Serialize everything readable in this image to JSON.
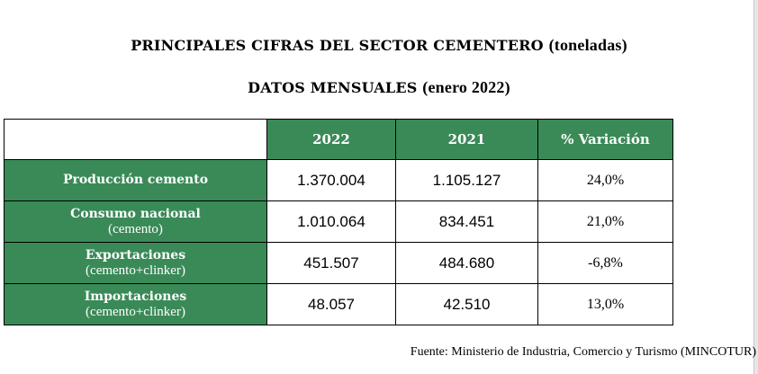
{
  "title": {
    "main": "PRINCIPALES CIFRAS DEL SECTOR CEMENTERO",
    "unit": "(toneladas)",
    "sub": "DATOS MENSUALES",
    "period": "(enero 2022)"
  },
  "table": {
    "headers": [
      "",
      "2022",
      "2021",
      "% Variación"
    ],
    "rows": [
      {
        "label": "Producción cemento",
        "sublabel": "",
        "y2022": "1.370.004",
        "y2021": "1.105.127",
        "variation": "24,0%"
      },
      {
        "label": "Consumo nacional",
        "sublabel": "(cemento)",
        "y2022": "1.010.064",
        "y2021": "834.451",
        "variation": "21,0%"
      },
      {
        "label": "Exportaciones",
        "sublabel": "(cemento+clinker)",
        "y2022": "451.507",
        "y2021": "484.680",
        "variation": "-6,8%"
      },
      {
        "label": "Importaciones",
        "sublabel": "(cemento+clinker)",
        "y2022": "48.057",
        "y2021": "42.510",
        "variation": "13,0%"
      }
    ]
  },
  "source": "Fuente: Ministerio de Industria, Comercio y Turismo (MINCOTUR)",
  "colors": {
    "header_green": "#3a8a57"
  }
}
